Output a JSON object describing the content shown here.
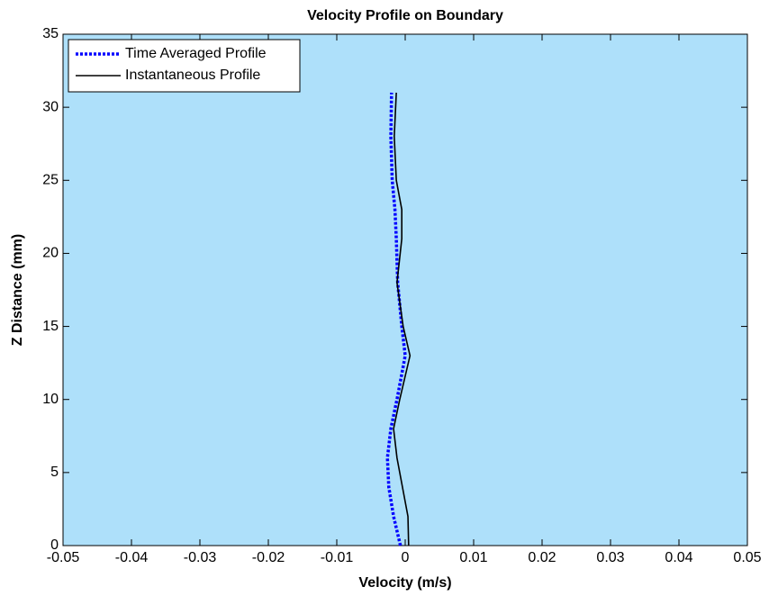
{
  "chart_data": {
    "type": "line",
    "title": "Velocity Profile on Boundary",
    "x_label": "Velocity (m/s)",
    "y_label": "Z Distance (mm)",
    "y": [
      0,
      2,
      4,
      6,
      8,
      10,
      13,
      15,
      18,
      21,
      23,
      25,
      28,
      31
    ],
    "series": [
      {
        "name": "Time Averaged Profile",
        "color": "#0000ff",
        "style": "dotted",
        "values": [
          -0.0007,
          -0.0017,
          -0.0024,
          -0.0026,
          -0.0021,
          -0.0012,
          0,
          -0.0005,
          -0.0011,
          -0.0013,
          -0.0015,
          -0.0019,
          -0.0021,
          -0.002
        ]
      },
      {
        "name": "Instantaneous Profile",
        "color": "#000000",
        "style": "solid",
        "values": [
          0.0005,
          0.0004,
          -0.0004,
          -0.0012,
          -0.0017,
          -0.0008,
          0.0007,
          -0.0003,
          -0.0012,
          -0.0005,
          -0.0005,
          -0.0013,
          -0.0016,
          -0.0013
        ]
      }
    ],
    "xlim": [
      -0.05,
      0.05
    ],
    "xticks": [
      -0.05,
      -0.04,
      -0.03,
      -0.02,
      -0.01,
      0,
      0.01,
      0.02,
      0.03,
      0.04,
      0.05
    ],
    "ylim": [
      0,
      35
    ],
    "yticks": [
      0,
      5,
      10,
      15,
      20,
      25,
      30,
      35
    ],
    "background": "#aee0fa",
    "legend": "upper-left"
  }
}
